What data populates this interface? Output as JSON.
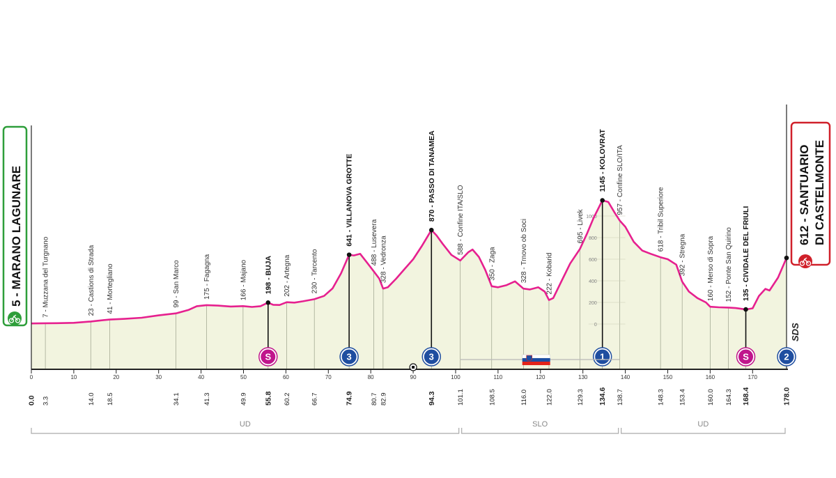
{
  "chart_data": {
    "type": "area",
    "x_unit": "km",
    "y_unit": "m",
    "ylim": [
      0,
      1000
    ],
    "xlim": [
      0,
      178
    ],
    "x_ticks": [
      0,
      10,
      20,
      30,
      40,
      50,
      60,
      70,
      80,
      90,
      100,
      110,
      120,
      130,
      140,
      150,
      160,
      170
    ],
    "y_ticks": [
      0,
      200,
      400,
      600,
      800,
      1000
    ],
    "profile": [
      [
        0,
        5
      ],
      [
        3.3,
        7
      ],
      [
        6,
        8
      ],
      [
        10,
        11
      ],
      [
        14,
        23
      ],
      [
        17,
        36
      ],
      [
        18.5,
        41
      ],
      [
        22,
        48
      ],
      [
        26,
        58
      ],
      [
        30,
        80
      ],
      [
        34.1,
        99
      ],
      [
        37,
        130
      ],
      [
        39,
        165
      ],
      [
        41.3,
        175
      ],
      [
        44,
        170
      ],
      [
        47,
        162
      ],
      [
        49.9,
        166
      ],
      [
        52,
        158
      ],
      [
        54,
        165
      ],
      [
        55.8,
        198
      ],
      [
        57,
        178
      ],
      [
        58.5,
        176
      ],
      [
        60.2,
        202
      ],
      [
        62,
        198
      ],
      [
        64,
        210
      ],
      [
        66.7,
        230
      ],
      [
        69,
        260
      ],
      [
        71,
        330
      ],
      [
        73,
        470
      ],
      [
        74.9,
        641
      ],
      [
        76,
        635
      ],
      [
        77.5,
        650
      ],
      [
        79,
        575
      ],
      [
        80.7,
        488
      ],
      [
        82,
        420
      ],
      [
        82.9,
        328
      ],
      [
        84,
        340
      ],
      [
        86,
        420
      ],
      [
        88,
        510
      ],
      [
        90,
        600
      ],
      [
        92,
        720
      ],
      [
        94.3,
        870
      ],
      [
        95.5,
        820
      ],
      [
        97,
        740
      ],
      [
        99,
        640
      ],
      [
        101.1,
        588
      ],
      [
        103,
        665
      ],
      [
        104,
        690
      ],
      [
        105.5,
        620
      ],
      [
        107,
        500
      ],
      [
        108.5,
        350
      ],
      [
        110,
        340
      ],
      [
        112,
        360
      ],
      [
        114,
        395
      ],
      [
        116,
        328
      ],
      [
        117.5,
        320
      ],
      [
        119.5,
        340
      ],
      [
        121,
        300
      ],
      [
        122,
        222
      ],
      [
        123,
        240
      ],
      [
        125,
        400
      ],
      [
        127,
        560
      ],
      [
        129.3,
        695
      ],
      [
        131,
        840
      ],
      [
        132.5,
        980
      ],
      [
        134.6,
        1145
      ],
      [
        136,
        1130
      ],
      [
        137.5,
        1030
      ],
      [
        138.7,
        957
      ],
      [
        140,
        900
      ],
      [
        142,
        760
      ],
      [
        144,
        680
      ],
      [
        146,
        650
      ],
      [
        148.3,
        618
      ],
      [
        150,
        600
      ],
      [
        152,
        550
      ],
      [
        153.4,
        392
      ],
      [
        155,
        300
      ],
      [
        157,
        240
      ],
      [
        159,
        200
      ],
      [
        160,
        160
      ],
      [
        162,
        155
      ],
      [
        164.3,
        152
      ],
      [
        166,
        148
      ],
      [
        168.4,
        135
      ],
      [
        170,
        145
      ],
      [
        171.5,
        260
      ],
      [
        173,
        325
      ],
      [
        174,
        310
      ],
      [
        176,
        430
      ],
      [
        178,
        612
      ]
    ],
    "annotations": [
      {
        "km": 3.3,
        "alt": 7,
        "label": "7 - Muzzana del Turgnano",
        "bold": false
      },
      {
        "km": 14.0,
        "alt": 23,
        "label": "23 - Castions di Strada",
        "bold": false
      },
      {
        "km": 18.5,
        "alt": 41,
        "label": "41 - Mortegliano",
        "bold": false
      },
      {
        "km": 34.1,
        "alt": 99,
        "label": "99 - San Marco",
        "bold": false
      },
      {
        "km": 41.3,
        "alt": 175,
        "label": "175 - Fagagna",
        "bold": false
      },
      {
        "km": 49.9,
        "alt": 166,
        "label": "166 - Majano",
        "bold": false
      },
      {
        "km": 55.8,
        "alt": 198,
        "label": "198 - BUJA",
        "bold": true
      },
      {
        "km": 60.2,
        "alt": 202,
        "label": "202 - Artegna",
        "bold": false
      },
      {
        "km": 66.7,
        "alt": 230,
        "label": "230 - Tarcento",
        "bold": false
      },
      {
        "km": 74.9,
        "alt": 641,
        "label": "641 - VILLANOVA GROTTE",
        "bold": true
      },
      {
        "km": 80.7,
        "alt": 488,
        "label": "488 - Lusevera",
        "bold": false
      },
      {
        "km": 82.9,
        "alt": 328,
        "label": "328 - Vedronza",
        "bold": false
      },
      {
        "km": 94.3,
        "alt": 870,
        "label": "870 - PASSO DI TANAMEA",
        "bold": true
      },
      {
        "km": 101.1,
        "alt": 588,
        "label": "588 - Confine ITA/SLO",
        "bold": false
      },
      {
        "km": 108.5,
        "alt": 350,
        "label": "350 - Zaga",
        "bold": false
      },
      {
        "km": 116.0,
        "alt": 328,
        "label": "328 - Trnovo ob Soci",
        "bold": false
      },
      {
        "km": 122.0,
        "alt": 222,
        "label": "222 - Kobarid",
        "bold": false
      },
      {
        "km": 129.3,
        "alt": 695,
        "label": "695 - Livek",
        "bold": false
      },
      {
        "km": 134.6,
        "alt": 1145,
        "label": "1145 - KOLOVRAT",
        "bold": true
      },
      {
        "km": 138.7,
        "alt": 957,
        "label": "957 - Confine SLO/ITA",
        "bold": false
      },
      {
        "km": 148.3,
        "alt": 618,
        "label": "618 - Tribil Superiore",
        "bold": false
      },
      {
        "km": 153.4,
        "alt": 392,
        "label": "392 - Stregna",
        "bold": false
      },
      {
        "km": 160.0,
        "alt": 160,
        "label": "160 - Merso di Sopra",
        "bold": false
      },
      {
        "km": 164.3,
        "alt": 152,
        "label": "152 - Ponte San Quirino",
        "bold": false
      },
      {
        "km": 168.4,
        "alt": 135,
        "label": "135 - CIVIDALE DEL FRIULI",
        "bold": true
      }
    ],
    "km_markers": [
      {
        "km": 0.0,
        "label": "0.0",
        "bold": true
      },
      {
        "km": 3.3,
        "label": "3.3",
        "bold": false
      },
      {
        "km": 14.0,
        "label": "14.0",
        "bold": false
      },
      {
        "km": 18.5,
        "label": "18.5",
        "bold": false
      },
      {
        "km": 34.1,
        "label": "34.1",
        "bold": false
      },
      {
        "km": 41.3,
        "label": "41.3",
        "bold": false
      },
      {
        "km": 49.9,
        "label": "49.9",
        "bold": false
      },
      {
        "km": 55.8,
        "label": "55.8",
        "bold": true
      },
      {
        "km": 60.2,
        "label": "60.2",
        "bold": false
      },
      {
        "km": 66.7,
        "label": "66.7",
        "bold": false
      },
      {
        "km": 74.9,
        "label": "74.9",
        "bold": true
      },
      {
        "km": 80.7,
        "label": "80.7",
        "bold": false
      },
      {
        "km": 82.9,
        "label": "82.9",
        "bold": false
      },
      {
        "km": 94.3,
        "label": "94.3",
        "bold": true
      },
      {
        "km": 101.1,
        "label": "101.1",
        "bold": false
      },
      {
        "km": 108.5,
        "label": "108.5",
        "bold": false
      },
      {
        "km": 116.0,
        "label": "116.0",
        "bold": false
      },
      {
        "km": 122.0,
        "label": "122.0",
        "bold": false
      },
      {
        "km": 129.3,
        "label": "129.3",
        "bold": false
      },
      {
        "km": 134.6,
        "label": "134.6",
        "bold": true
      },
      {
        "km": 138.7,
        "label": "138.7",
        "bold": false
      },
      {
        "km": 148.3,
        "label": "148.3",
        "bold": false
      },
      {
        "km": 153.4,
        "label": "153.4",
        "bold": false
      },
      {
        "km": 160.0,
        "label": "160.0",
        "bold": false
      },
      {
        "km": 164.3,
        "label": "164.3",
        "bold": false
      },
      {
        "km": 168.4,
        "label": "168.4",
        "bold": true
      },
      {
        "km": 178.0,
        "label": "178.0",
        "bold": true
      }
    ],
    "badges": [
      {
        "km": 55.8,
        "text": "S",
        "kind": "sprint",
        "color": "#c0158c"
      },
      {
        "km": 74.9,
        "text": "3",
        "kind": "gpm",
        "color": "#1f4ea0"
      },
      {
        "km": 94.3,
        "text": "3",
        "kind": "gpm",
        "color": "#1f4ea0"
      },
      {
        "km": 134.6,
        "text": "1",
        "kind": "gpm",
        "color": "#1f4ea0"
      },
      {
        "km": 168.4,
        "text": "S",
        "kind": "sprint",
        "color": "#c0158c"
      },
      {
        "km": 178.0,
        "text": "2",
        "kind": "gpm",
        "color": "#1f4ea0"
      }
    ],
    "regions": [
      {
        "from": 0,
        "to": 101.1,
        "label": "UD"
      },
      {
        "from": 101.1,
        "to": 138.7,
        "label": "SLO"
      },
      {
        "from": 138.7,
        "to": 178,
        "label": "UD"
      }
    ],
    "start": {
      "label": "5 - MARANO LAGUNARE",
      "color": "#2e9e3a"
    },
    "finish": {
      "label1": "612 - SANTUARIO",
      "label2": "DI CASTELMONTE",
      "color": "#d0202a"
    },
    "logo": "SDS",
    "colors": {
      "line": "#e6208f",
      "fill": "#f2f4df",
      "axis": "#222222",
      "dim": "#666666"
    }
  }
}
